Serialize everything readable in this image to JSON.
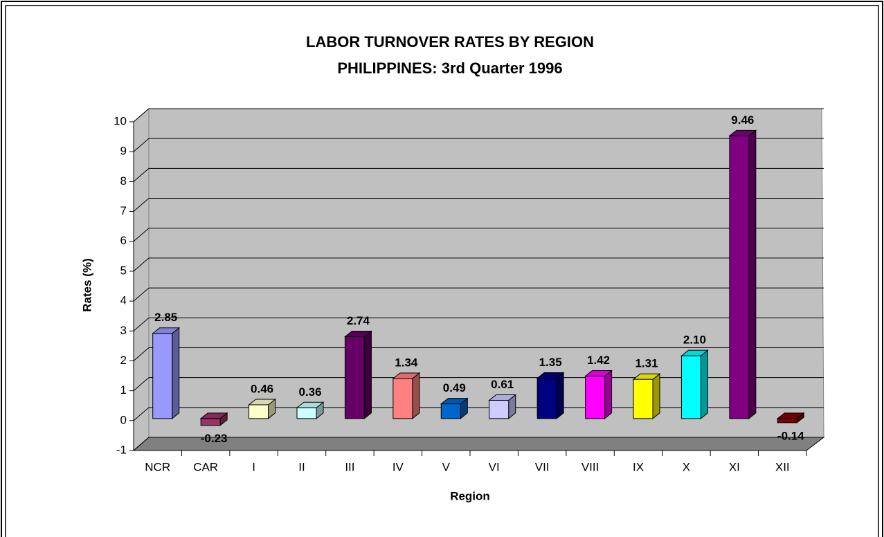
{
  "chart_data": {
    "type": "bar3d",
    "title": "LABOR TURNOVER RATES BY REGION",
    "subtitle": "PHILIPPINES:  3rd Quarter 1996",
    "x_label": "Region",
    "y_label": "Rates (%)",
    "categories": [
      "NCR",
      "CAR",
      "I",
      "II",
      "III",
      "IV",
      "V",
      "VI",
      "VII",
      "VIII",
      "IX",
      "X",
      "XI",
      "XII"
    ],
    "values": [
      2.85,
      -0.23,
      0.46,
      0.36,
      2.74,
      1.34,
      0.49,
      0.61,
      1.35,
      1.42,
      1.31,
      2.1,
      9.46,
      -0.14
    ],
    "value_labels": [
      "2.85",
      "-0.23",
      "0.46",
      "0.36",
      "2.74",
      "1.34",
      "0.49",
      "0.61",
      "1.35",
      "1.42",
      "1.31",
      "2.10",
      "9.46",
      "-0.14"
    ],
    "colors": [
      "#9999ff",
      "#993366",
      "#ffffcc",
      "#ccffff",
      "#660066",
      "#ff8080",
      "#0066cc",
      "#ccccff",
      "#000080",
      "#ff00ff",
      "#ffff00",
      "#00ffff",
      "#800080",
      "#800000"
    ],
    "ylim": [
      -1,
      10
    ],
    "yticks": [
      -1,
      0,
      1,
      2,
      3,
      4,
      5,
      6,
      7,
      8,
      9,
      10
    ],
    "grid": true
  }
}
